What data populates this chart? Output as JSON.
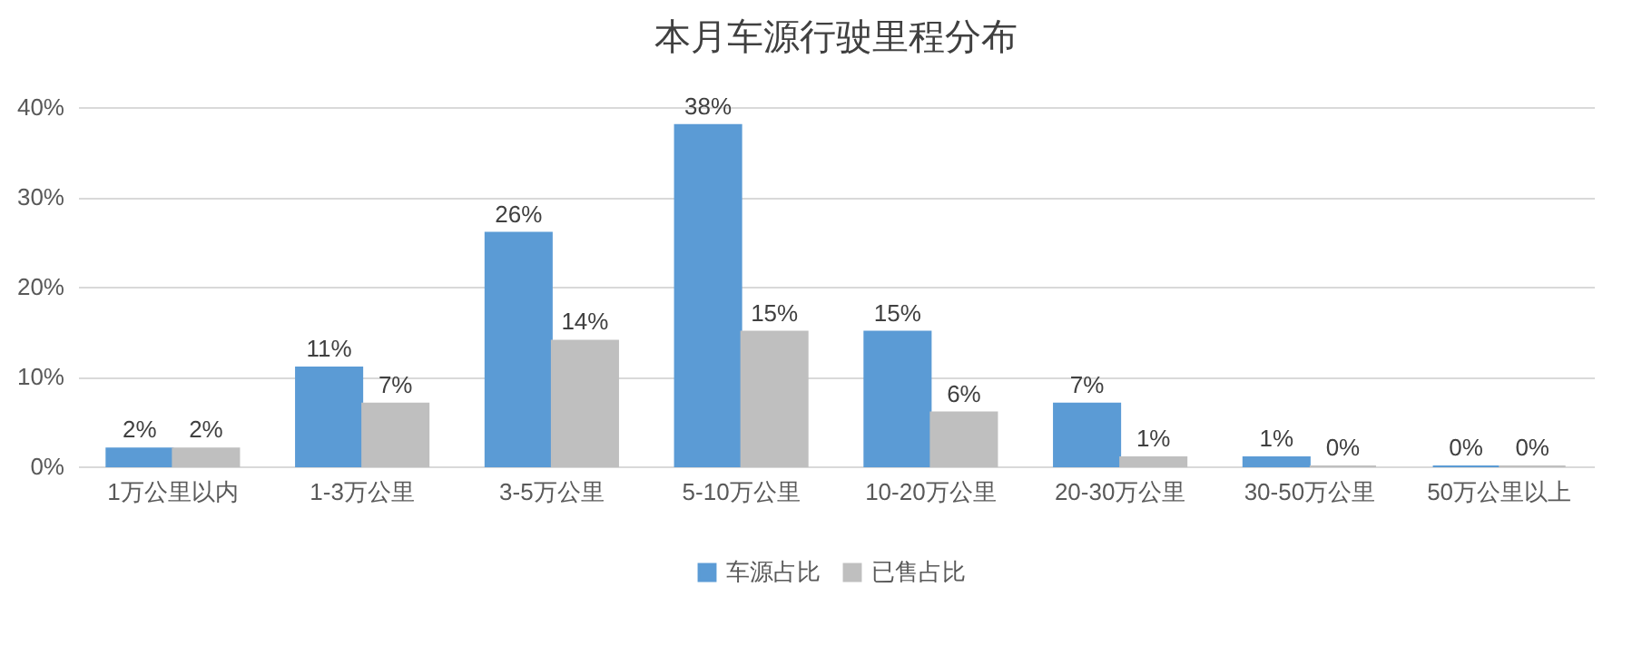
{
  "chart_data": {
    "type": "bar",
    "title": "本月车源行驶里程分布",
    "categories": [
      "1万公里以内",
      "1-3万公里",
      "3-5万公里",
      "5-10万公里",
      "10-20万公里",
      "20-30万公里",
      "30-50万公里",
      "50万公里以上"
    ],
    "series": [
      {
        "name": "车源占比",
        "color": "#5b9bd5",
        "values": [
          2,
          11,
          26,
          38,
          15,
          7,
          1,
          0
        ],
        "value_labels": [
          "2%",
          "11%",
          "26%",
          "38%",
          "15%",
          "7%",
          "1%",
          "0%"
        ]
      },
      {
        "name": "已售占比",
        "color": "#bfbfbf",
        "values": [
          2,
          7,
          14,
          15,
          6,
          1,
          0,
          0
        ],
        "value_labels": [
          "2%",
          "7%",
          "14%",
          "15%",
          "6%",
          "1%",
          "0%",
          "0%"
        ]
      }
    ],
    "ylim": [
      0,
      40
    ],
    "yticks": [
      {
        "value": 0,
        "label": "0%"
      },
      {
        "value": 10,
        "label": "10%"
      },
      {
        "value": 20,
        "label": "20%"
      },
      {
        "value": 30,
        "label": "30%"
      },
      {
        "value": 40,
        "label": "40%"
      }
    ],
    "grid": "y",
    "legend": "bottom"
  }
}
